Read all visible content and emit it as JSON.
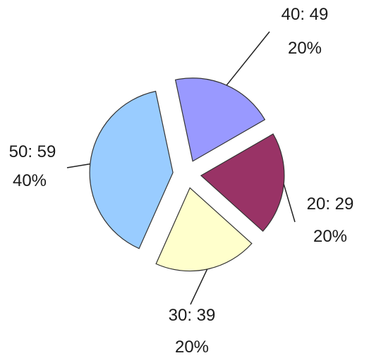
{
  "chart_data": {
    "type": "pie",
    "title": "",
    "exploded": true,
    "slices": [
      {
        "category": "40: 49",
        "percent_label": "20%",
        "value": 20,
        "color": "#9999ff"
      },
      {
        "category": "20: 29",
        "percent_label": "20%",
        "value": 20,
        "color": "#993366"
      },
      {
        "category": "30: 39",
        "percent_label": "20%",
        "value": 20,
        "color": "#ffffcc"
      },
      {
        "category": "50: 59",
        "percent_label": "40%",
        "value": 40,
        "color": "#99ccff"
      }
    ]
  }
}
